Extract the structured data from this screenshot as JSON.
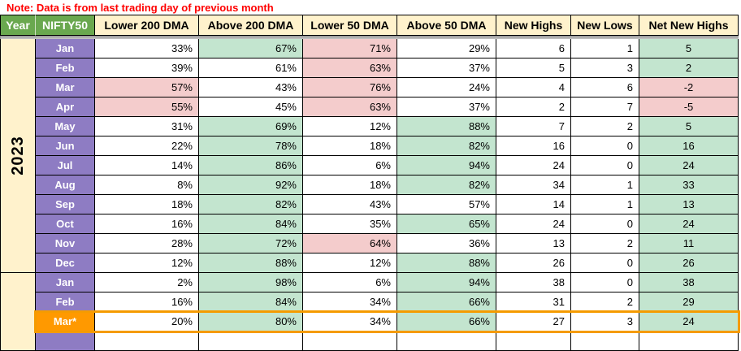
{
  "note": "Note: Data is from last trading day of previous month",
  "header": {
    "year": "Year",
    "index": "NIFTY50",
    "columns": [
      "Lower 200 DMA",
      "Above 200 DMA",
      "Lower 50 DMA",
      "Above 50 DMA",
      "New Highs",
      "New Lows",
      "Net New Highs"
    ]
  },
  "colors": {
    "note_red": "#FF0000",
    "header_green": "#6AA84F",
    "header_cream": "#FFF2CC",
    "month_purple": "#8E7CC3",
    "year_cream": "#FFF2CC",
    "cell_green": "#C3E5CF",
    "cell_pink": "#F4CCCC",
    "highlight_orange": "#FF9900",
    "highlight_border": "#F59B00",
    "grid_border": "#000000",
    "freeze_divider": "#969696"
  },
  "years": [
    {
      "label": "2023",
      "rows": [
        {
          "month": "Jan",
          "cells": [
            {
              "t": "33%",
              "bg": "w"
            },
            {
              "t": "67%",
              "bg": "g"
            },
            {
              "t": "71%",
              "bg": "p"
            },
            {
              "t": "29%",
              "bg": "w"
            },
            {
              "t": "6",
              "bg": "w"
            },
            {
              "t": "1",
              "bg": "w"
            },
            {
              "t": "5",
              "bg": "g"
            }
          ]
        },
        {
          "month": "Feb",
          "cells": [
            {
              "t": "39%",
              "bg": "w"
            },
            {
              "t": "61%",
              "bg": "w"
            },
            {
              "t": "63%",
              "bg": "p"
            },
            {
              "t": "37%",
              "bg": "w"
            },
            {
              "t": "5",
              "bg": "w"
            },
            {
              "t": "3",
              "bg": "w"
            },
            {
              "t": "2",
              "bg": "g"
            }
          ]
        },
        {
          "month": "Mar",
          "cells": [
            {
              "t": "57%",
              "bg": "p"
            },
            {
              "t": "43%",
              "bg": "w"
            },
            {
              "t": "76%",
              "bg": "p"
            },
            {
              "t": "24%",
              "bg": "w"
            },
            {
              "t": "4",
              "bg": "w"
            },
            {
              "t": "6",
              "bg": "w"
            },
            {
              "t": "-2",
              "bg": "p"
            }
          ]
        },
        {
          "month": "Apr",
          "cells": [
            {
              "t": "55%",
              "bg": "p"
            },
            {
              "t": "45%",
              "bg": "w"
            },
            {
              "t": "63%",
              "bg": "p"
            },
            {
              "t": "37%",
              "bg": "w"
            },
            {
              "t": "2",
              "bg": "w"
            },
            {
              "t": "7",
              "bg": "w"
            },
            {
              "t": "-5",
              "bg": "p"
            }
          ]
        },
        {
          "month": "May",
          "cells": [
            {
              "t": "31%",
              "bg": "w"
            },
            {
              "t": "69%",
              "bg": "g"
            },
            {
              "t": "12%",
              "bg": "w"
            },
            {
              "t": "88%",
              "bg": "g"
            },
            {
              "t": "7",
              "bg": "w"
            },
            {
              "t": "2",
              "bg": "w"
            },
            {
              "t": "5",
              "bg": "g"
            }
          ]
        },
        {
          "month": "Jun",
          "cells": [
            {
              "t": "22%",
              "bg": "w"
            },
            {
              "t": "78%",
              "bg": "g"
            },
            {
              "t": "18%",
              "bg": "w"
            },
            {
              "t": "82%",
              "bg": "g"
            },
            {
              "t": "16",
              "bg": "w"
            },
            {
              "t": "0",
              "bg": "w"
            },
            {
              "t": "16",
              "bg": "g"
            }
          ]
        },
        {
          "month": "Jul",
          "cells": [
            {
              "t": "14%",
              "bg": "w"
            },
            {
              "t": "86%",
              "bg": "g"
            },
            {
              "t": "6%",
              "bg": "w"
            },
            {
              "t": "94%",
              "bg": "g"
            },
            {
              "t": "24",
              "bg": "w"
            },
            {
              "t": "0",
              "bg": "w"
            },
            {
              "t": "24",
              "bg": "g"
            }
          ]
        },
        {
          "month": "Aug",
          "cells": [
            {
              "t": "8%",
              "bg": "w"
            },
            {
              "t": "92%",
              "bg": "g"
            },
            {
              "t": "18%",
              "bg": "w"
            },
            {
              "t": "82%",
              "bg": "g"
            },
            {
              "t": "34",
              "bg": "w"
            },
            {
              "t": "1",
              "bg": "w"
            },
            {
              "t": "33",
              "bg": "g"
            }
          ]
        },
        {
          "month": "Sep",
          "cells": [
            {
              "t": "18%",
              "bg": "w"
            },
            {
              "t": "82%",
              "bg": "g"
            },
            {
              "t": "43%",
              "bg": "w"
            },
            {
              "t": "57%",
              "bg": "w"
            },
            {
              "t": "14",
              "bg": "w"
            },
            {
              "t": "1",
              "bg": "w"
            },
            {
              "t": "13",
              "bg": "g"
            }
          ]
        },
        {
          "month": "Oct",
          "cells": [
            {
              "t": "16%",
              "bg": "w"
            },
            {
              "t": "84%",
              "bg": "g"
            },
            {
              "t": "35%",
              "bg": "w"
            },
            {
              "t": "65%",
              "bg": "g"
            },
            {
              "t": "24",
              "bg": "w"
            },
            {
              "t": "0",
              "bg": "w"
            },
            {
              "t": "24",
              "bg": "g"
            }
          ]
        },
        {
          "month": "Nov",
          "cells": [
            {
              "t": "28%",
              "bg": "w"
            },
            {
              "t": "72%",
              "bg": "g"
            },
            {
              "t": "64%",
              "bg": "p"
            },
            {
              "t": "36%",
              "bg": "w"
            },
            {
              "t": "13",
              "bg": "w"
            },
            {
              "t": "2",
              "bg": "w"
            },
            {
              "t": "11",
              "bg": "g"
            }
          ]
        },
        {
          "month": "Dec",
          "cells": [
            {
              "t": "12%",
              "bg": "w"
            },
            {
              "t": "88%",
              "bg": "g"
            },
            {
              "t": "12%",
              "bg": "w"
            },
            {
              "t": "88%",
              "bg": "g"
            },
            {
              "t": "26",
              "bg": "w"
            },
            {
              "t": "0",
              "bg": "w"
            },
            {
              "t": "26",
              "bg": "g"
            }
          ]
        }
      ]
    },
    {
      "label": "",
      "rows": [
        {
          "month": "Jan",
          "cells": [
            {
              "t": "2%",
              "bg": "w"
            },
            {
              "t": "98%",
              "bg": "g"
            },
            {
              "t": "6%",
              "bg": "w"
            },
            {
              "t": "94%",
              "bg": "g"
            },
            {
              "t": "38",
              "bg": "w"
            },
            {
              "t": "0",
              "bg": "w"
            },
            {
              "t": "38",
              "bg": "g"
            }
          ]
        },
        {
          "month": "Feb",
          "cells": [
            {
              "t": "16%",
              "bg": "w"
            },
            {
              "t": "84%",
              "bg": "g"
            },
            {
              "t": "34%",
              "bg": "w"
            },
            {
              "t": "66%",
              "bg": "g"
            },
            {
              "t": "31",
              "bg": "w"
            },
            {
              "t": "2",
              "bg": "w"
            },
            {
              "t": "29",
              "bg": "g"
            }
          ]
        },
        {
          "month": "Mar*",
          "highlight": true,
          "cells": [
            {
              "t": "20%",
              "bg": "w"
            },
            {
              "t": "80%",
              "bg": "g"
            },
            {
              "t": "34%",
              "bg": "w"
            },
            {
              "t": "66%",
              "bg": "g"
            },
            {
              "t": "27",
              "bg": "w"
            },
            {
              "t": "3",
              "bg": "w"
            },
            {
              "t": "24",
              "bg": "g"
            }
          ]
        },
        {
          "month": "",
          "partial": true,
          "cells": [
            {
              "t": "",
              "bg": "w"
            },
            {
              "t": "",
              "bg": "w"
            },
            {
              "t": "",
              "bg": "w"
            },
            {
              "t": "",
              "bg": "w"
            },
            {
              "t": "",
              "bg": "w"
            },
            {
              "t": "",
              "bg": "w"
            },
            {
              "t": "",
              "bg": "w"
            }
          ]
        }
      ]
    }
  ]
}
